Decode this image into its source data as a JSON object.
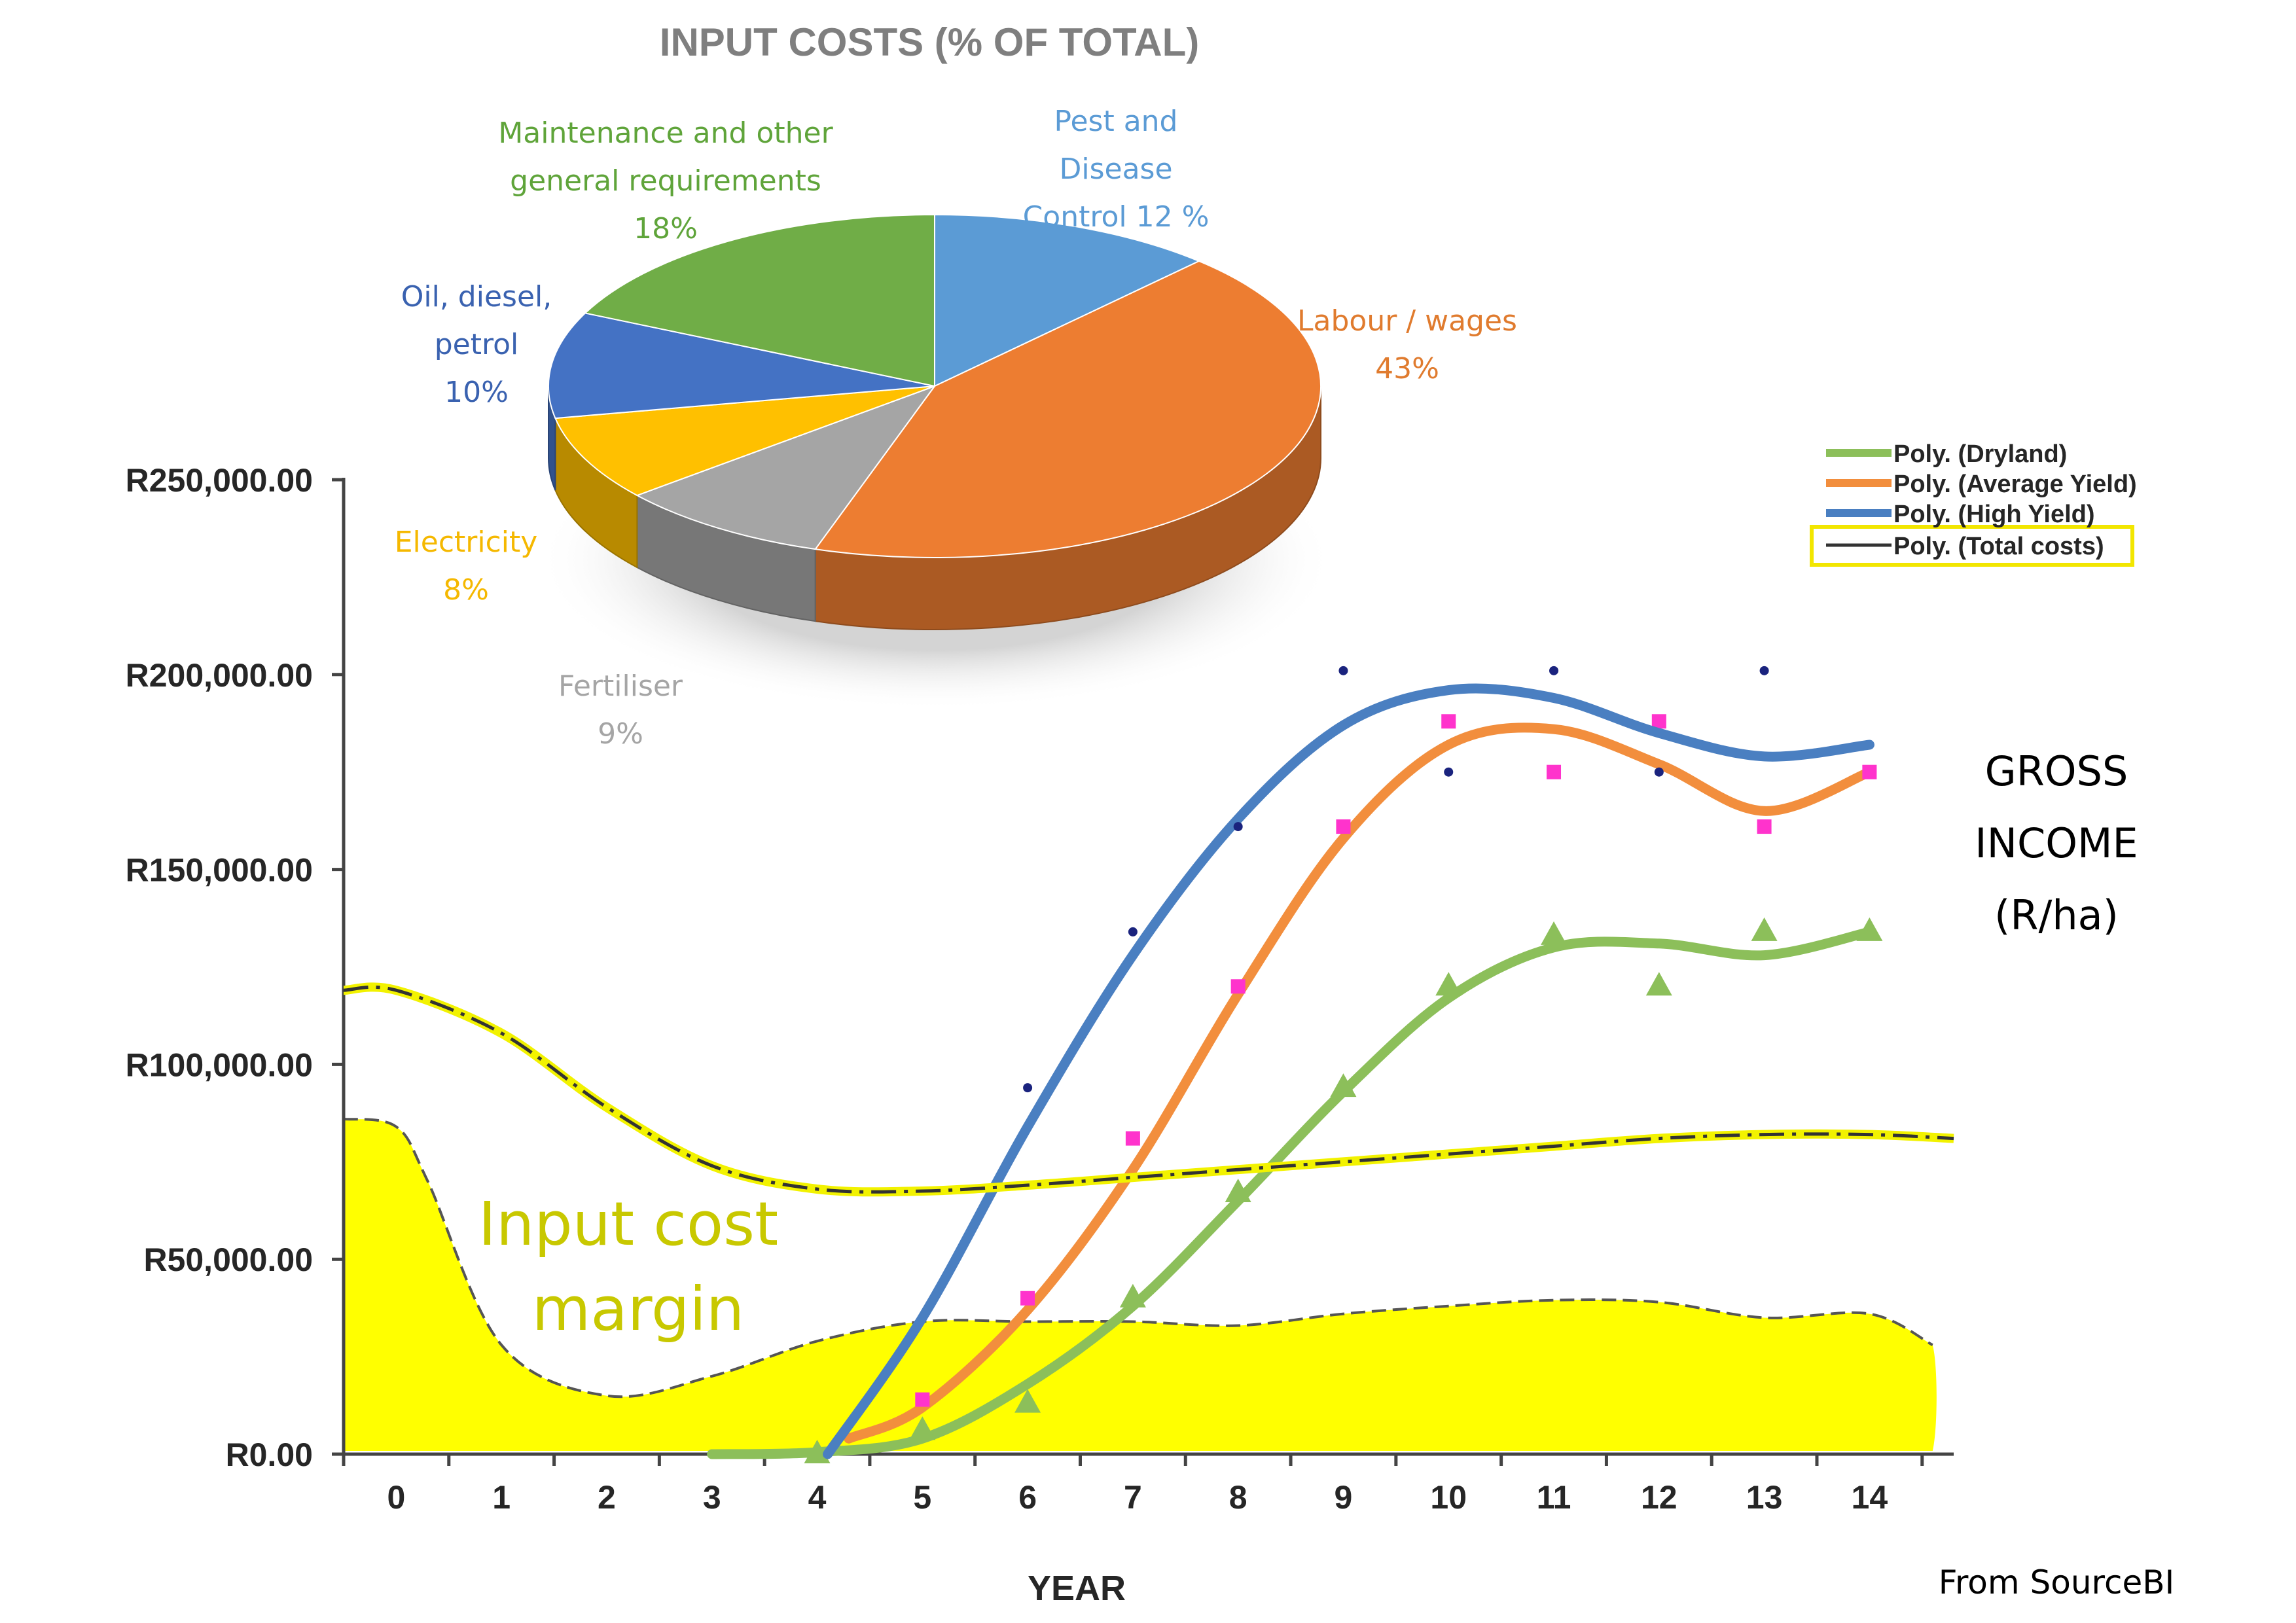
{
  "chart_data": [
    {
      "type": "pie",
      "title": "INPUT COSTS (% OF TOTAL)",
      "slices": [
        {
          "label": "Pest and Disease Control",
          "value": 12,
          "value_text": "Pest and|Disease|Control 12 %",
          "color": "#5b9bd5"
        },
        {
          "label": "Labour / wages",
          "value": 43,
          "value_text": "Labour / wages|43%",
          "color": "#ed7d31"
        },
        {
          "label": "Fertiliser",
          "value": 9,
          "value_text": "Fertiliser|9%",
          "color": "#a5a5a5"
        },
        {
          "label": "Electricity",
          "value": 8,
          "value_text": "Electricity|8%",
          "color": "#ffc000"
        },
        {
          "label": "Oil, diesel, petrol",
          "value": 10,
          "value_text": "Oil, diesel,|petrol|10%",
          "color": "#4472c4"
        },
        {
          "label": "Maintenance and other general requirements",
          "value": 18,
          "value_text": "Maintenance and other|general requirements|18%",
          "color": "#70ad47"
        }
      ]
    },
    {
      "type": "line",
      "xlabel": "YEAR",
      "ylabel": "",
      "x": [
        0,
        1,
        2,
        3,
        4,
        5,
        6,
        7,
        8,
        9,
        10,
        11,
        12,
        13,
        14
      ],
      "xlim": [
        -0.5,
        14.8
      ],
      "ylim": [
        0,
        250000
      ],
      "y_ticks": [
        0,
        50000,
        100000,
        150000,
        200000,
        250000
      ],
      "y_tick_labels": [
        "R0.00",
        "R50,000.00",
        "R100,000.00",
        "R150,000.00",
        "R200,000.00",
        "R250,000.00"
      ],
      "side_label": [
        "GROSS",
        "INCOME",
        "(R/ha)"
      ],
      "area_label": [
        "Input cost",
        "margin"
      ],
      "source": "From SourceBI",
      "legend_position": "top-right",
      "series": [
        {
          "name": "Poly. (Dryland)",
          "color": "#8cbf5a",
          "marker": "triangle",
          "points_x": [
            4,
            5,
            6,
            7,
            8,
            9,
            10,
            11,
            12,
            13,
            14
          ],
          "points_y": [
            0,
            6000,
            13000,
            40000,
            67000,
            94000,
            120000,
            133000,
            120000,
            134000,
            134000
          ],
          "curve_x": [
            3,
            4,
            5,
            6,
            7,
            8,
            9,
            10,
            11,
            12,
            13,
            14
          ],
          "curve_y": [
            0,
            500,
            4000,
            18000,
            38000,
            65000,
            93000,
            117000,
            130000,
            131000,
            128000,
            134000
          ]
        },
        {
          "name": "Poly. (Average Yield)",
          "color": "#f28e3d",
          "marker": "square",
          "points_x": [
            5,
            6,
            7,
            8,
            9,
            10,
            11,
            12,
            13,
            14
          ],
          "points_y": [
            14000,
            40000,
            81000,
            120000,
            161000,
            188000,
            175000,
            188000,
            161000,
            175000
          ],
          "curve_x": [
            4.3,
            5,
            6,
            7,
            8,
            9,
            10,
            11,
            12,
            13,
            14
          ],
          "curve_y": [
            4000,
            12000,
            37000,
            73000,
            118000,
            158000,
            182000,
            186000,
            177000,
            165000,
            175000
          ]
        },
        {
          "name": "Poly. (High Yield)",
          "color": "#4a7fc1",
          "marker": "dot",
          "points_x": [
            6,
            7,
            8,
            9,
            10,
            11,
            12,
            13
          ],
          "points_y": [
            94000,
            134000,
            161000,
            201000,
            175000,
            201000,
            175000,
            201000
          ],
          "curve_x": [
            4.1,
            5,
            6,
            7,
            8,
            9,
            10,
            11,
            12,
            13,
            14
          ],
          "curve_y": [
            0,
            35000,
            84000,
            128000,
            163000,
            187000,
            196000,
            194000,
            185000,
            179000,
            182000
          ]
        },
        {
          "name": "Poly. (Total costs)",
          "color": "#333333",
          "curve_x": [
            -0.5,
            0,
            1,
            2,
            3,
            4,
            5,
            6,
            7,
            8,
            9,
            10,
            11,
            12,
            13,
            14,
            14.8
          ],
          "curve_y": [
            119000,
            119000,
            108000,
            89000,
            74000,
            68000,
            67500,
            69000,
            71000,
            73000,
            75000,
            77000,
            79000,
            81000,
            82000,
            82000,
            81000
          ]
        }
      ],
      "input_cost_area": {
        "x": [
          -0.5,
          0,
          0.3,
          1,
          2,
          3,
          4,
          5,
          6,
          7,
          8,
          9,
          10,
          11,
          12,
          13,
          14,
          14.6
        ],
        "y": [
          86000,
          84000,
          70000,
          28000,
          15000,
          20000,
          29000,
          34000,
          34000,
          34000,
          33000,
          36000,
          38000,
          39500,
          39000,
          35000,
          36000,
          28000
        ]
      }
    }
  ]
}
